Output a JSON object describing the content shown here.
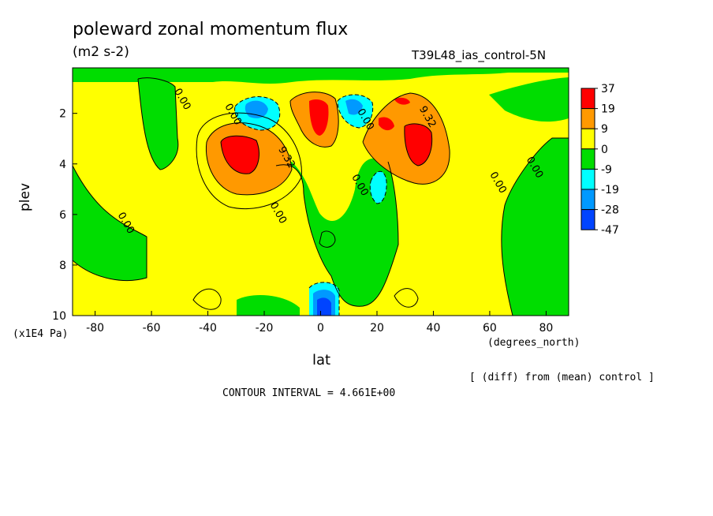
{
  "chart_data": {
    "type": "heatmap",
    "title": "poleward zonal momentum flux",
    "units": "(m2 s-2)",
    "run_label": "T39L48_ias_control-5N",
    "xlabel": "lat",
    "xunit": "(degrees_north)",
    "ylabel": "plev",
    "yunit": "(x1E4 Pa)",
    "footnote": "[ (diff) from (mean) control ]",
    "contour_interval": "CONTOUR INTERVAL = 4.661E+00",
    "xlim": [
      -88,
      88
    ],
    "ylim": [
      0.2,
      10
    ],
    "y_inverted": true,
    "x_ticks": [
      -80,
      -60,
      -40,
      -20,
      0,
      20,
      40,
      60,
      80
    ],
    "y_ticks": [
      2,
      4,
      6,
      8,
      10
    ],
    "colorbar": {
      "labels": [
        "37",
        "19",
        "9",
        "0",
        "-9",
        "-19",
        "-28",
        "-47"
      ],
      "colors": [
        "#ff0000",
        "#ff9900",
        "#ffff00",
        "#00dd00",
        "#00ffff",
        "#0099ff",
        "#0044ff"
      ]
    },
    "contour_labels": [
      {
        "text": "0.00",
        "x": -50,
        "y": 1.5
      },
      {
        "text": "0.00",
        "x": -32,
        "y": 2.1
      },
      {
        "text": "9.32",
        "x": -13,
        "y": 3.8
      },
      {
        "text": "9.32",
        "x": 37,
        "y": 2.2
      },
      {
        "text": "0.00",
        "x": 15,
        "y": 2.3
      },
      {
        "text": "0.00",
        "x": 13,
        "y": 4.9
      },
      {
        "text": "0.00",
        "x": -16,
        "y": 6.0
      },
      {
        "text": "0.00",
        "x": 62,
        "y": 4.8
      },
      {
        "text": "0.00",
        "x": 75,
        "y": 4.2
      },
      {
        "text": "0.00",
        "x": -70,
        "y": 6.4
      }
    ],
    "features": [
      {
        "kind": "max",
        "x": -26,
        "y": 3.6,
        "level": "37"
      },
      {
        "kind": "max",
        "x": -1,
        "y": 1.8,
        "level": "37"
      },
      {
        "kind": "max",
        "x": 35,
        "y": 3.3,
        "level": "37"
      },
      {
        "kind": "max",
        "x": 28,
        "y": 1.5,
        "level": "37"
      },
      {
        "kind": "max",
        "x": 22,
        "y": 2.4,
        "level": "37"
      },
      {
        "kind": "min",
        "x": -20,
        "y": 2.0,
        "level": "-28"
      },
      {
        "kind": "min",
        "x": 12,
        "y": 1.7,
        "level": "-28"
      },
      {
        "kind": "min",
        "x": 2,
        "y": 9.6,
        "level": "-47"
      },
      {
        "kind": "min",
        "x": 18,
        "y": 5.2,
        "level": "-19"
      }
    ]
  }
}
